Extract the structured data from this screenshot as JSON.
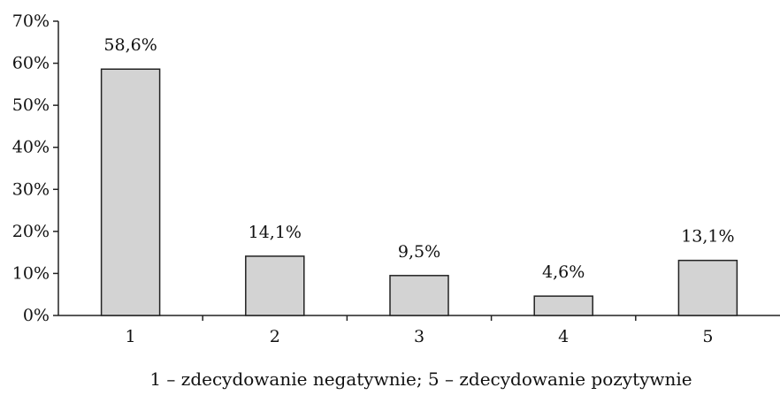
{
  "chart_data": {
    "type": "bar",
    "categories": [
      "1",
      "2",
      "3",
      "4",
      "5"
    ],
    "values": [
      58.6,
      14.1,
      9.5,
      4.6,
      13.1
    ],
    "data_labels": [
      "58,6%",
      "14,1%",
      "9,5%",
      "4,6%",
      "13,1%"
    ],
    "ylim": [
      0,
      70
    ],
    "y_ticks": [
      0,
      10,
      20,
      30,
      40,
      50,
      60,
      70
    ],
    "y_tick_labels": [
      "0%",
      "10%",
      "20%",
      "30%",
      "40%",
      "50%",
      "60%",
      "70%"
    ],
    "caption": "1 – zdecydowanie negatywnie; 5 – zdecydowanie pozytywnie",
    "grid": false,
    "legend": "none",
    "bar_color": "#d3d3d3",
    "bar_edge_color": "#222222"
  }
}
